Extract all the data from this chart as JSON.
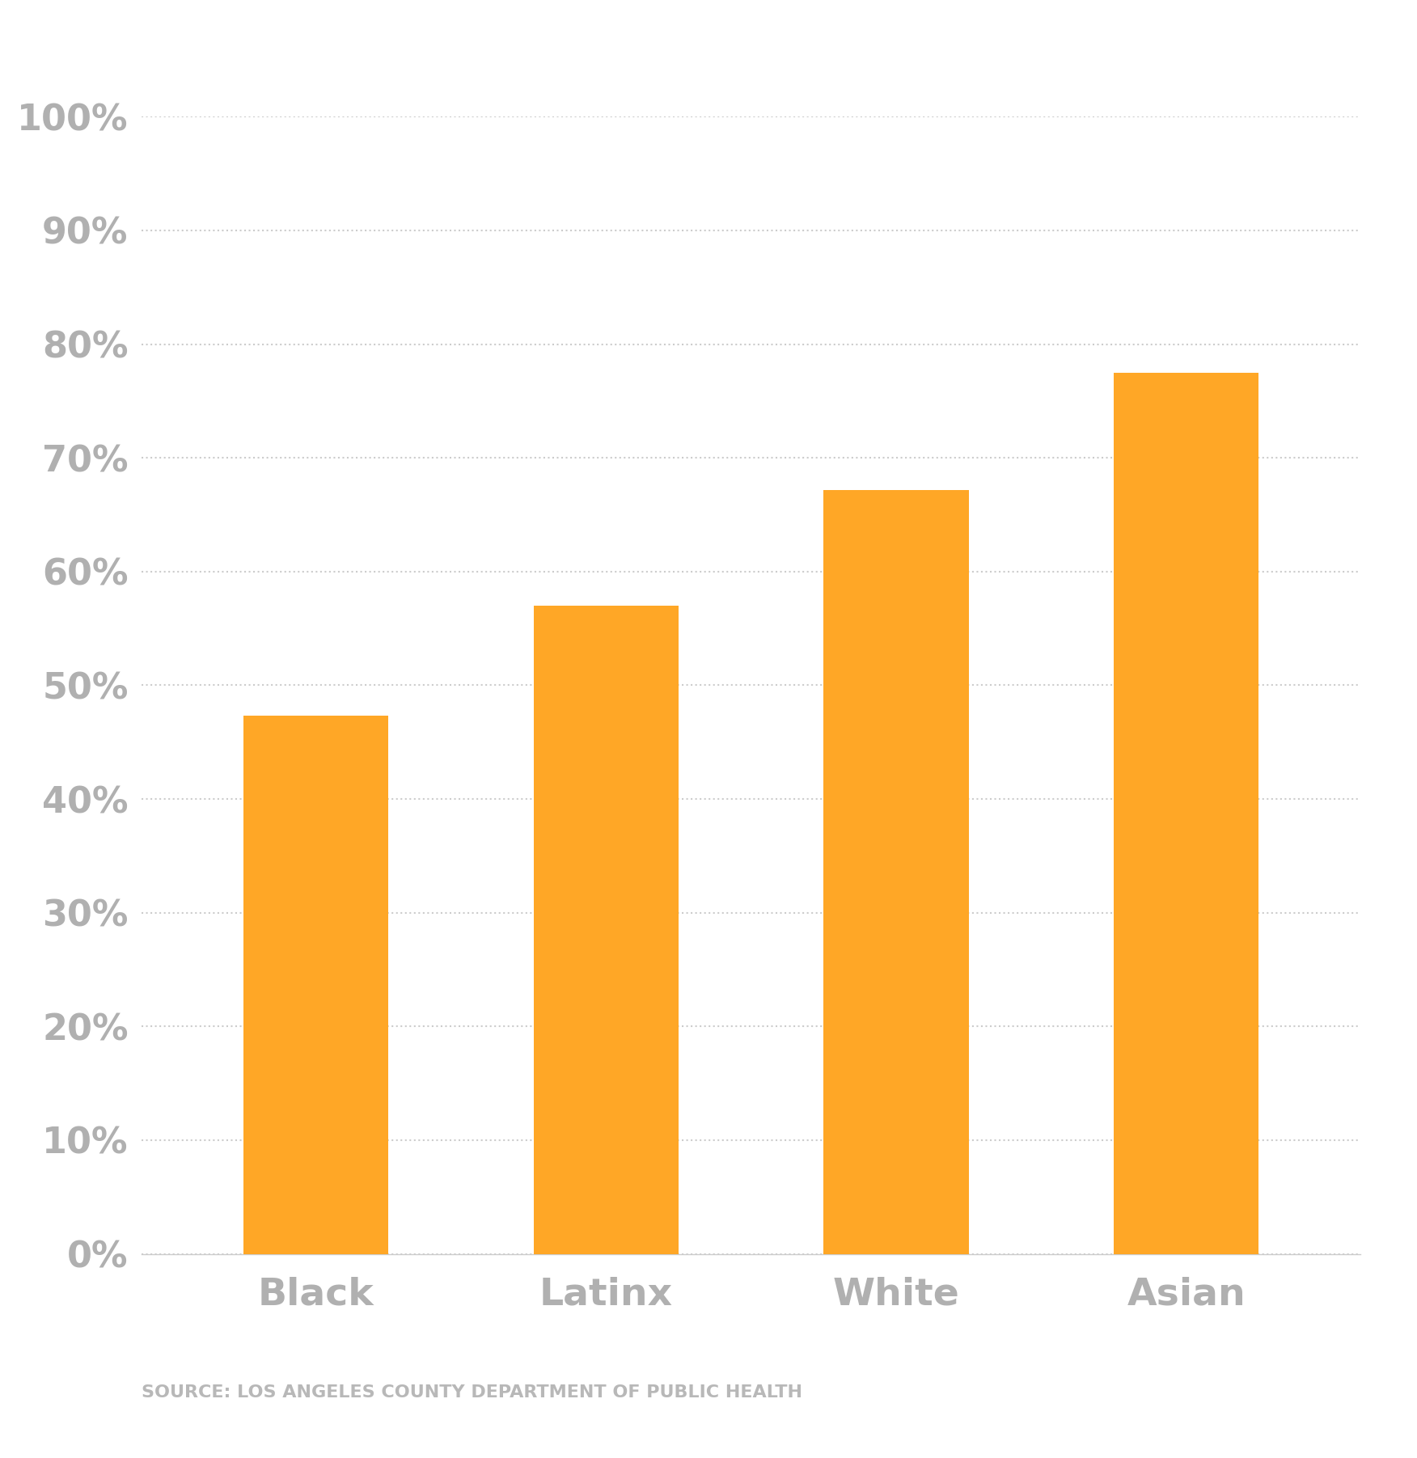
{
  "categories": [
    "Black",
    "Latinx",
    "White",
    "Asian"
  ],
  "values": [
    0.473,
    0.57,
    0.672,
    0.775
  ],
  "bar_color": "#FFA726",
  "background_color": "#ffffff",
  "ytick_labels": [
    "0%",
    "10%",
    "20%",
    "30%",
    "40%",
    "50%",
    "60%",
    "70%",
    "80%",
    "90%",
    "100%"
  ],
  "ytick_values": [
    0,
    0.1,
    0.2,
    0.3,
    0.4,
    0.5,
    0.6,
    0.7,
    0.8,
    0.9,
    1.0
  ],
  "ylim": [
    0,
    1.0
  ],
  "grid_color": "#cccccc",
  "tick_label_color": "#b0b0b0",
  "source_text": "SOURCE: LOS ANGELES COUNTY DEPARTMENT OF PUBLIC HEALTH",
  "source_color": "#b8b8b8",
  "source_fontsize": 16,
  "tick_fontsize": 32,
  "xtick_fontsize": 34,
  "bar_width": 0.5,
  "spine_color": "#cccccc"
}
